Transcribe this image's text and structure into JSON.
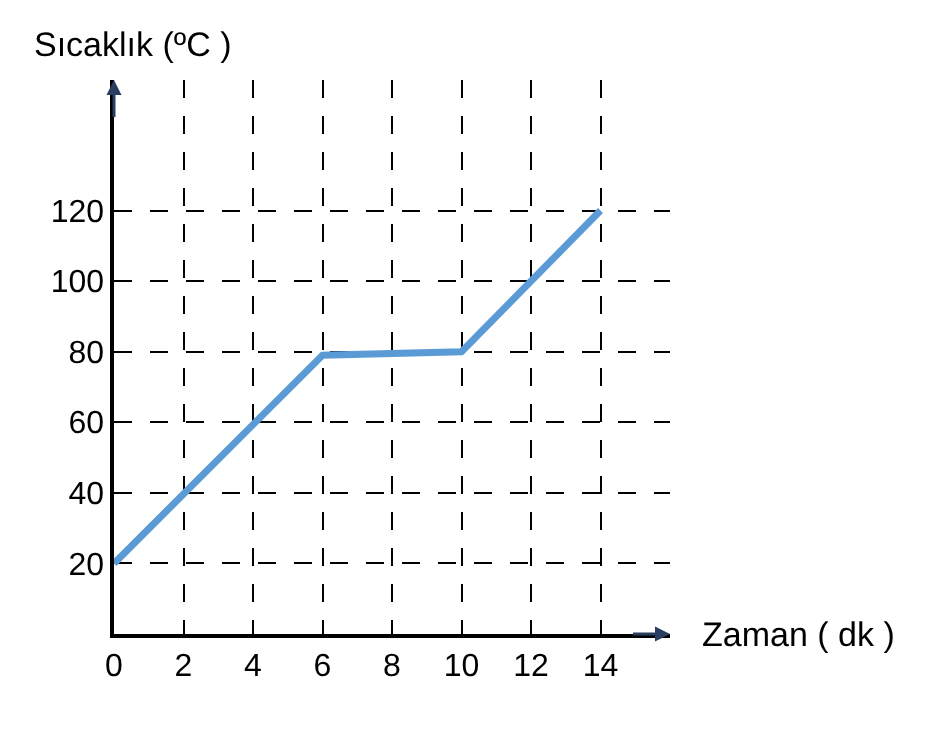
{
  "chart_data": {
    "type": "line",
    "xlabel": "Zaman ( dk )",
    "ylabel": "Sıcaklık (ºC )",
    "x": [
      0,
      6,
      10,
      14
    ],
    "series": [
      {
        "color": "#5b9bd5",
        "values": [
          20,
          79,
          80,
          120
        ]
      }
    ],
    "xlim": [
      0,
      16
    ],
    "ylim": [
      0,
      157
    ],
    "xticks": [
      0,
      2,
      4,
      6,
      8,
      10,
      12,
      14
    ],
    "yticks": [
      {
        "value": 0,
        "label": null
      },
      20,
      40,
      60,
      80,
      100,
      120
    ],
    "grid": true,
    "marker": "none",
    "line_style": "solid",
    "legend": false
  }
}
